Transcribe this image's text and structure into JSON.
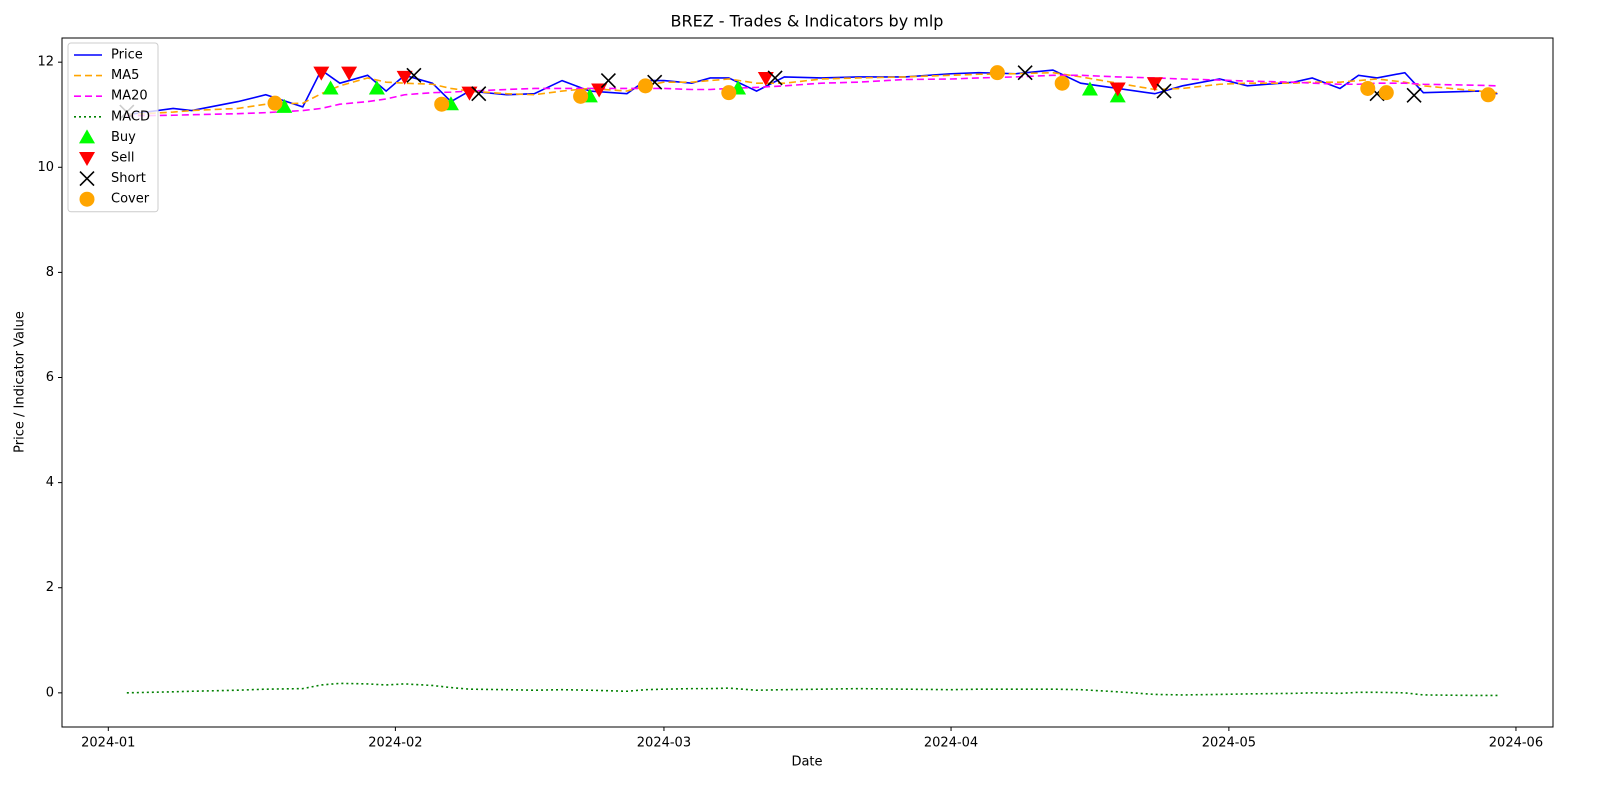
{
  "chart_data": {
    "type": "line",
    "title": "BREZ - Trades & Indicators by mlp",
    "x_label": "Date",
    "y_label": "Price / Indicator Value",
    "xlim": [
      "2023-12-27",
      "2024-06-05"
    ],
    "xticks": [
      {
        "value": "2024-01-01",
        "label": "2024-01"
      },
      {
        "value": "2024-02-01",
        "label": "2024-02"
      },
      {
        "value": "2024-03-01",
        "label": "2024-03"
      },
      {
        "value": "2024-04-01",
        "label": "2024-04"
      },
      {
        "value": "2024-05-01",
        "label": "2024-05"
      },
      {
        "value": "2024-06-01",
        "label": "2024-06"
      }
    ],
    "ylim": [
      -0.65,
      12.46
    ],
    "yticks": [
      0,
      2,
      4,
      6,
      8,
      10,
      12
    ],
    "grid": false,
    "legend": "upper left",
    "x": [
      "2024-01-03",
      "2024-01-08",
      "2024-01-10",
      "2024-01-15",
      "2024-01-18",
      "2024-01-22",
      "2024-01-24",
      "2024-01-26",
      "2024-01-29",
      "2024-01-31",
      "2024-02-02",
      "2024-02-05",
      "2024-02-07",
      "2024-02-09",
      "2024-02-13",
      "2024-02-16",
      "2024-02-19",
      "2024-02-22",
      "2024-02-26",
      "2024-02-28",
      "2024-03-01",
      "2024-03-04",
      "2024-03-06",
      "2024-03-08",
      "2024-03-11",
      "2024-03-14",
      "2024-03-18",
      "2024-03-22",
      "2024-03-27",
      "2024-04-01",
      "2024-04-04",
      "2024-04-08",
      "2024-04-12",
      "2024-04-15",
      "2024-04-19",
      "2024-04-23",
      "2024-04-26",
      "2024-04-30",
      "2024-05-03",
      "2024-05-08",
      "2024-05-10",
      "2024-05-13",
      "2024-05-15",
      "2024-05-17",
      "2024-05-20",
      "2024-05-22",
      "2024-05-28",
      "2024-05-30"
    ],
    "series": [
      {
        "name": "Price",
        "color": "#0000ff",
        "linestyle": "solid",
        "values": [
          11.0,
          11.12,
          11.08,
          11.25,
          11.38,
          11.15,
          11.85,
          11.6,
          11.75,
          11.45,
          11.75,
          11.6,
          11.25,
          11.45,
          11.38,
          11.4,
          11.65,
          11.45,
          11.4,
          11.65,
          11.65,
          11.6,
          11.7,
          11.7,
          11.45,
          11.72,
          11.7,
          11.72,
          11.72,
          11.78,
          11.8,
          11.78,
          11.85,
          11.6,
          11.5,
          11.4,
          11.55,
          11.68,
          11.55,
          11.62,
          11.7,
          11.5,
          11.75,
          11.7,
          11.8,
          11.42,
          11.45,
          11.4
        ]
      },
      {
        "name": "MA5",
        "color": "#ffa500",
        "linestyle": "dashed",
        "values": [
          11.0,
          11.05,
          11.08,
          11.12,
          11.2,
          11.22,
          11.4,
          11.55,
          11.7,
          11.62,
          11.6,
          11.58,
          11.5,
          11.45,
          11.4,
          11.38,
          11.45,
          11.5,
          11.45,
          11.55,
          11.62,
          11.62,
          11.65,
          11.68,
          11.6,
          11.6,
          11.68,
          11.7,
          11.72,
          11.75,
          11.77,
          11.78,
          11.8,
          11.72,
          11.6,
          11.48,
          11.5,
          11.58,
          11.6,
          11.6,
          11.62,
          11.62,
          11.65,
          11.68,
          11.62,
          11.55,
          11.45,
          11.42
        ]
      },
      {
        "name": "MA20",
        "color": "#ff00ff",
        "linestyle": "dashed",
        "values": [
          10.98,
          10.99,
          11.0,
          11.02,
          11.04,
          11.08,
          11.12,
          11.2,
          11.25,
          11.3,
          11.38,
          11.42,
          11.43,
          11.45,
          11.48,
          11.5,
          11.5,
          11.5,
          11.5,
          11.5,
          11.5,
          11.48,
          11.48,
          11.5,
          11.52,
          11.55,
          11.6,
          11.62,
          11.67,
          11.68,
          11.7,
          11.72,
          11.75,
          11.75,
          11.72,
          11.7,
          11.68,
          11.66,
          11.64,
          11.62,
          11.6,
          11.58,
          11.58,
          11.6,
          11.6,
          11.58,
          11.56,
          11.55
        ]
      },
      {
        "name": "MACD",
        "color": "#008000",
        "linestyle": "dotted",
        "values": [
          0,
          0.02,
          0.03,
          0.05,
          0.07,
          0.08,
          0.15,
          0.18,
          0.17,
          0.15,
          0.17,
          0.14,
          0.1,
          0.07,
          0.06,
          0.05,
          0.06,
          0.05,
          0.03,
          0.06,
          0.07,
          0.08,
          0.08,
          0.09,
          0.05,
          0.06,
          0.07,
          0.08,
          0.07,
          0.06,
          0.07,
          0.07,
          0.07,
          0.06,
          0.02,
          -0.03,
          -0.04,
          -0.03,
          -0.02,
          -0.01,
          0,
          -0.01,
          0.01,
          0.01,
          0,
          -0.04,
          -0.05,
          -0.05
        ]
      },
      {
        "name": "Buy",
        "color": "#00ff00",
        "marker": "triangle-up",
        "x": [
          "2024-01-20",
          "2024-01-25",
          "2024-01-30",
          "2024-02-07",
          "2024-02-22",
          "2024-03-09",
          "2024-04-16",
          "2024-04-19"
        ],
        "values": [
          11.15,
          11.5,
          11.5,
          11.2,
          11.35,
          11.5,
          11.48,
          11.35
        ]
      },
      {
        "name": "Sell",
        "color": "#ff0000",
        "marker": "triangle-down",
        "x": [
          "2024-01-24",
          "2024-01-27",
          "2024-02-02",
          "2024-02-09",
          "2024-02-23",
          "2024-03-12",
          "2024-04-19",
          "2024-04-23"
        ],
        "values": [
          11.8,
          11.8,
          11.72,
          11.42,
          11.48,
          11.7,
          11.5,
          11.6
        ]
      },
      {
        "name": "Short",
        "color": "#000000",
        "marker": "x",
        "x": [
          "2024-01-03",
          "2024-02-03",
          "2024-02-10",
          "2024-02-24",
          "2024-02-29",
          "2024-03-13",
          "2024-04-09",
          "2024-04-24",
          "2024-05-17",
          "2024-05-21"
        ],
        "values": [
          11.05,
          11.75,
          11.4,
          11.65,
          11.62,
          11.7,
          11.8,
          11.45,
          11.4,
          11.37
        ]
      },
      {
        "name": "Cover",
        "color": "#ffa500",
        "marker": "circle",
        "x": [
          "2024-01-19",
          "2024-02-06",
          "2024-02-21",
          "2024-02-28",
          "2024-03-08",
          "2024-04-06",
          "2024-04-13",
          "2024-05-16",
          "2024-05-18",
          "2024-05-29"
        ],
        "values": [
          11.22,
          11.2,
          11.35,
          11.55,
          11.42,
          11.8,
          11.6,
          11.5,
          11.42,
          11.38
        ]
      }
    ]
  }
}
